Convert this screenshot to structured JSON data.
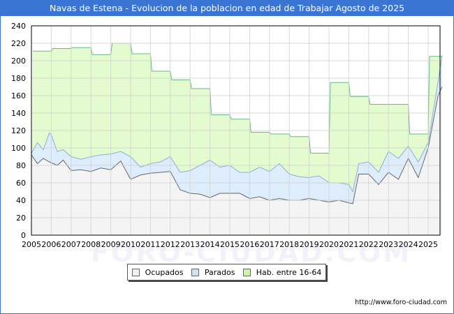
{
  "header": {
    "title": "Navas de Estena - Evolucion de la poblacion en edad de Trabajar Agosto de 2025"
  },
  "legend": {
    "items": [
      {
        "label": "Ocupados",
        "color": "#f0f0f0"
      },
      {
        "label": "Parados",
        "color": "#cfe3f7"
      },
      {
        "label": "Hab. entre 16-64",
        "color": "#ccf5a8"
      }
    ]
  },
  "footer": {
    "source": "http://www.foro-ciudad.com",
    "watermark": "FORO-CIUDAD.COM"
  },
  "colors": {
    "title_bg": "#3a75d4",
    "hab_fill": "#e3fbcf",
    "hab_line": "#6db58a",
    "parados_fill": "#deedfb",
    "parados_line": "#8aaee0",
    "ocupados_fill": "#f4f4f4",
    "ocupados_line": "#666666",
    "grid": "#d0d0d0"
  },
  "chart_data": {
    "type": "area",
    "title": "Navas de Estena - Evolucion de la poblacion en edad de Trabajar Agosto de 2025",
    "xlabel": "",
    "ylabel": "",
    "ylim": [
      0,
      240
    ],
    "yticks": [
      0,
      20,
      40,
      60,
      80,
      100,
      120,
      140,
      160,
      180,
      200,
      220,
      240
    ],
    "xticks": [
      "2005",
      "2006",
      "2007",
      "2008",
      "2009",
      "2010",
      "2011",
      "2012",
      "2013",
      "2014",
      "2015",
      "2016",
      "2017",
      "2018",
      "2019",
      "2020",
      "2021",
      "2022",
      "2023",
      "2024",
      "2025"
    ],
    "grid": true,
    "legend_position": "bottom",
    "series": [
      {
        "name": "Hab. entre 16-64",
        "x": [
          2005,
          2006,
          2007,
          2008,
          2009,
          2010,
          2011,
          2012,
          2013,
          2014,
          2015,
          2016,
          2017,
          2018,
          2019,
          2020,
          2021,
          2022,
          2023,
          2024,
          2025
        ],
        "values": [
          211,
          214,
          215,
          207,
          220,
          208,
          188,
          178,
          168,
          138,
          133,
          118,
          116,
          113,
          94,
          175,
          159,
          150,
          150,
          116,
          205
        ]
      },
      {
        "name": "Parados",
        "x": [
          2005.0,
          2005.3,
          2005.6,
          2005.9,
          2006.0,
          2006.3,
          2006.6,
          2007.0,
          2007.5,
          2008.0,
          2008.5,
          2009.0,
          2009.5,
          2010.0,
          2010.5,
          2011.0,
          2011.5,
          2012.0,
          2012.5,
          2013.0,
          2013.5,
          2014.0,
          2014.5,
          2015.0,
          2015.5,
          2016.0,
          2016.5,
          2017.0,
          2017.5,
          2018.0,
          2018.5,
          2019.0,
          2019.5,
          2020.0,
          2020.5,
          2021.0,
          2021.2,
          2021.5,
          2022.0,
          2022.5,
          2023.0,
          2023.5,
          2024.0,
          2024.5,
          2025.0,
          2025.5,
          2025.7
        ],
        "values": [
          94,
          106,
          98,
          117,
          115,
          96,
          98,
          90,
          87,
          90,
          92,
          93,
          96,
          90,
          78,
          82,
          84,
          90,
          72,
          74,
          80,
          86,
          78,
          80,
          72,
          72,
          78,
          73,
          82,
          70,
          67,
          66,
          68,
          60,
          60,
          58,
          50,
          82,
          84,
          72,
          96,
          88,
          102,
          84,
          106,
          176,
          206
        ]
      },
      {
        "name": "Ocupados",
        "x": [
          2005.0,
          2005.3,
          2005.6,
          2005.9,
          2006.0,
          2006.3,
          2006.6,
          2007.0,
          2007.5,
          2008.0,
          2008.5,
          2009.0,
          2009.5,
          2010.0,
          2010.5,
          2011.0,
          2011.5,
          2012.0,
          2012.5,
          2013.0,
          2013.5,
          2014.0,
          2014.5,
          2015.0,
          2015.5,
          2016.0,
          2016.5,
          2017.0,
          2017.5,
          2018.0,
          2018.5,
          2019.0,
          2019.5,
          2020.0,
          2020.5,
          2021.0,
          2021.2,
          2021.5,
          2022.0,
          2022.5,
          2023.0,
          2023.5,
          2024.0,
          2024.5,
          2025.0,
          2025.5,
          2025.7
        ],
        "values": [
          92,
          82,
          88,
          84,
          83,
          80,
          86,
          74,
          75,
          73,
          77,
          75,
          85,
          64,
          69,
          71,
          72,
          73,
          52,
          48,
          47,
          43,
          48,
          48,
          48,
          42,
          44,
          40,
          42,
          40,
          40,
          42,
          40,
          38,
          40,
          37,
          36,
          70,
          70,
          58,
          72,
          64,
          88,
          66,
          100,
          160,
          170
        ]
      }
    ]
  }
}
